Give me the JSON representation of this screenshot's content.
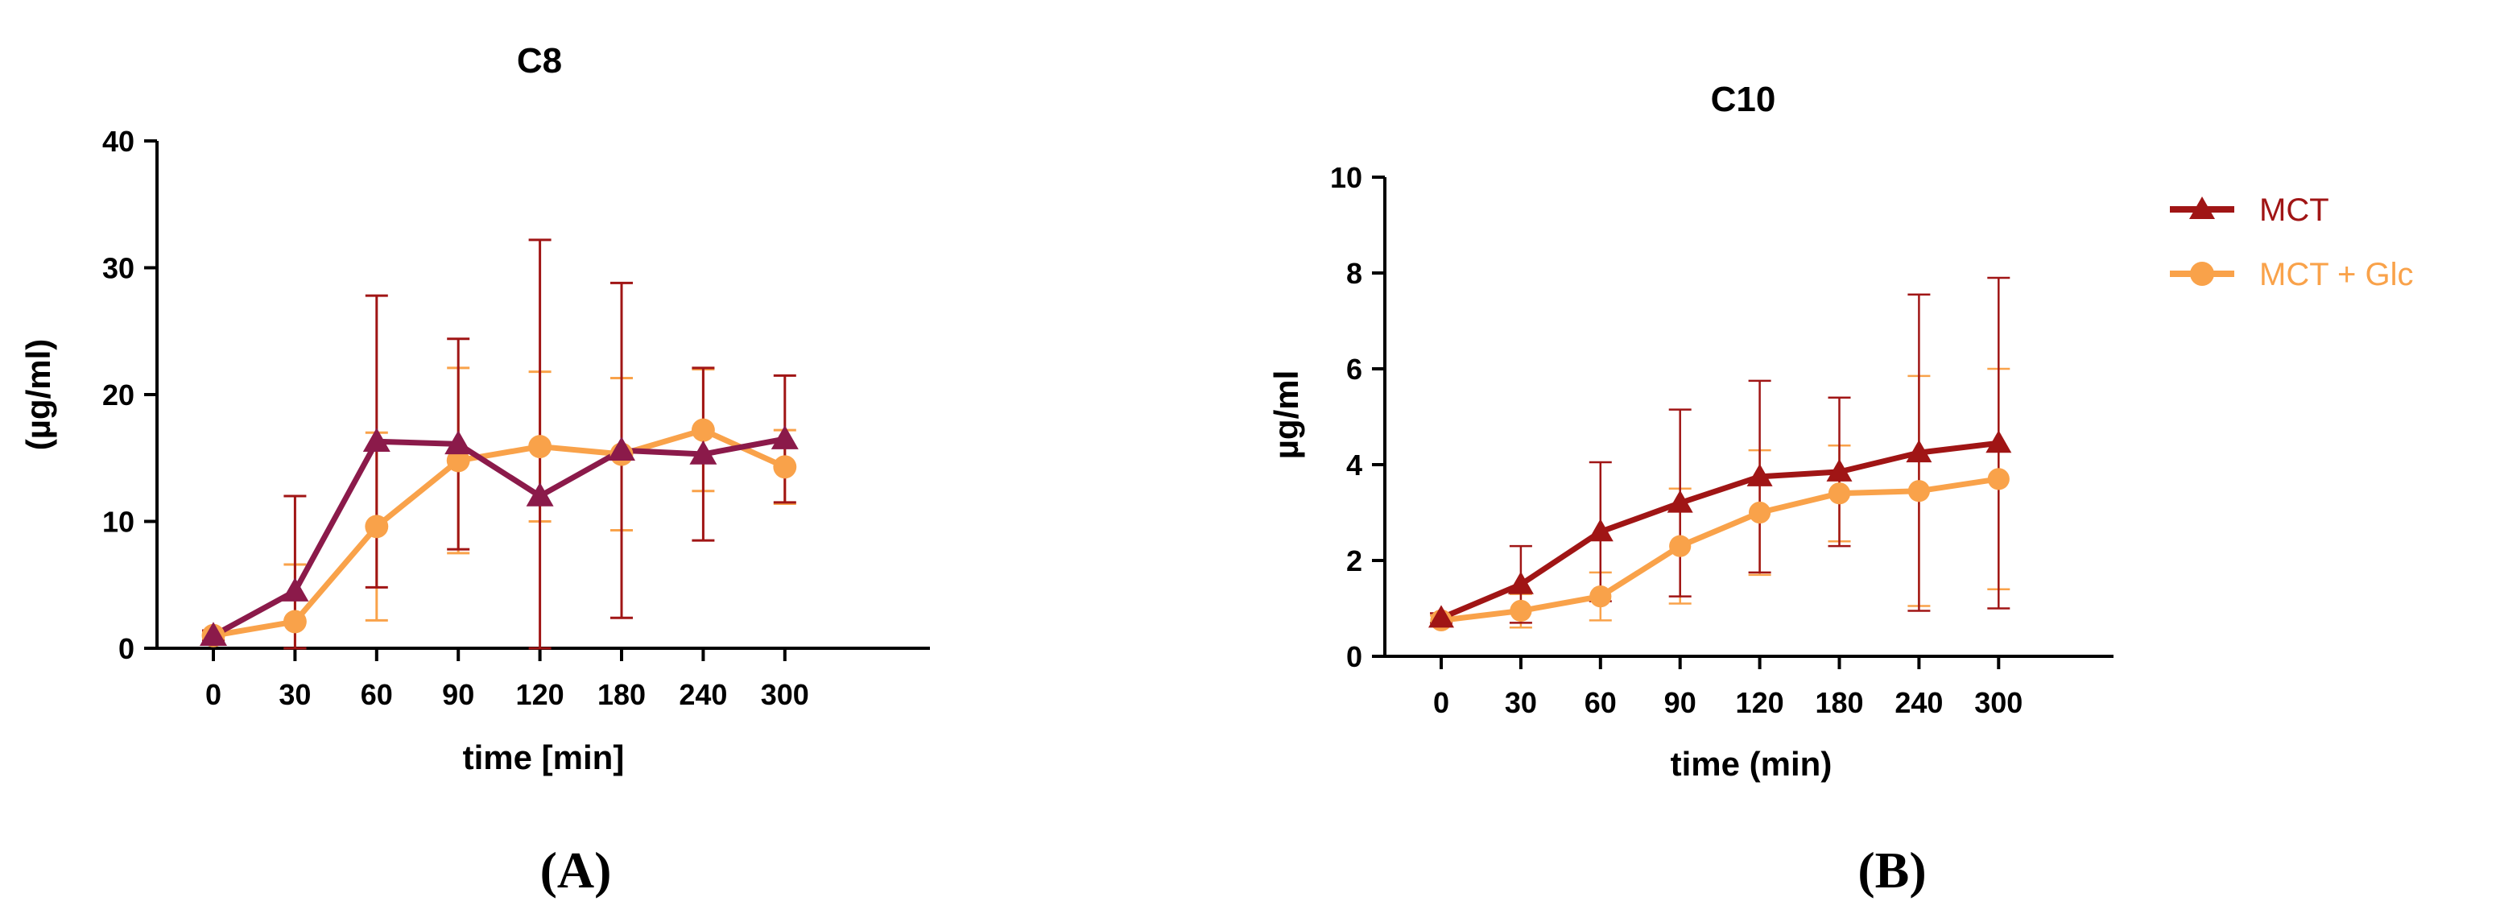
{
  "chart_data": [
    {
      "type": "line",
      "panel_label": "(A)",
      "title": "C8",
      "xlabel": "time [min]",
      "ylabel": "(µg/ml)",
      "categories": [
        "0",
        "30",
        "60",
        "90",
        "120",
        "180",
        "240",
        "300"
      ],
      "ylim": [
        0,
        40
      ],
      "yticks": [
        "0",
        "10",
        "20",
        "30",
        "40"
      ],
      "grid": false,
      "series": [
        {
          "name": "MCT",
          "color": "#8B1A4A",
          "error_color": "#A01515",
          "marker": "triangle",
          "values": [
            1.0,
            4.5,
            16.3,
            16.1,
            12.0,
            15.6,
            15.3,
            16.5
          ],
          "errors": [
            0.4,
            7.5,
            11.5,
            8.3,
            20.2,
            13.2,
            6.8,
            5.0
          ]
        },
        {
          "name": "MCT + Glc",
          "color": "#F9A24A",
          "error_color": "#F9A24A",
          "marker": "circle",
          "values": [
            1.0,
            2.1,
            9.6,
            14.8,
            15.9,
            15.3,
            17.2,
            14.3
          ],
          "errors": [
            0.3,
            4.5,
            7.4,
            7.3,
            5.9,
            6.0,
            4.8,
            2.9
          ]
        }
      ]
    },
    {
      "type": "line",
      "panel_label": "(B)",
      "title": "C10",
      "xlabel": "time (min)",
      "ylabel": "µg/ml",
      "categories": [
        "0",
        "30",
        "60",
        "90",
        "120",
        "180",
        "240",
        "300"
      ],
      "ylim": [
        0,
        10
      ],
      "yticks": [
        "0",
        "2",
        "4",
        "6",
        "8",
        "10"
      ],
      "grid": false,
      "legend_position": "right",
      "series": [
        {
          "name": "MCT",
          "color": "#A01515",
          "error_color": "#A01515",
          "marker": "triangle",
          "values": [
            0.8,
            1.5,
            2.6,
            3.2,
            3.75,
            3.85,
            4.25,
            4.45
          ],
          "errors": [
            0.1,
            0.8,
            1.45,
            1.95,
            2.0,
            1.55,
            3.3,
            3.45
          ]
        },
        {
          "name": "MCT + Glc",
          "color": "#F9A24A",
          "error_color": "#F9A24A",
          "marker": "circle",
          "values": [
            0.75,
            0.95,
            1.25,
            2.3,
            3.0,
            3.4,
            3.45,
            3.7
          ],
          "errors": [
            0.1,
            0.35,
            0.5,
            1.2,
            1.3,
            1.0,
            2.4,
            2.3
          ]
        }
      ]
    }
  ]
}
